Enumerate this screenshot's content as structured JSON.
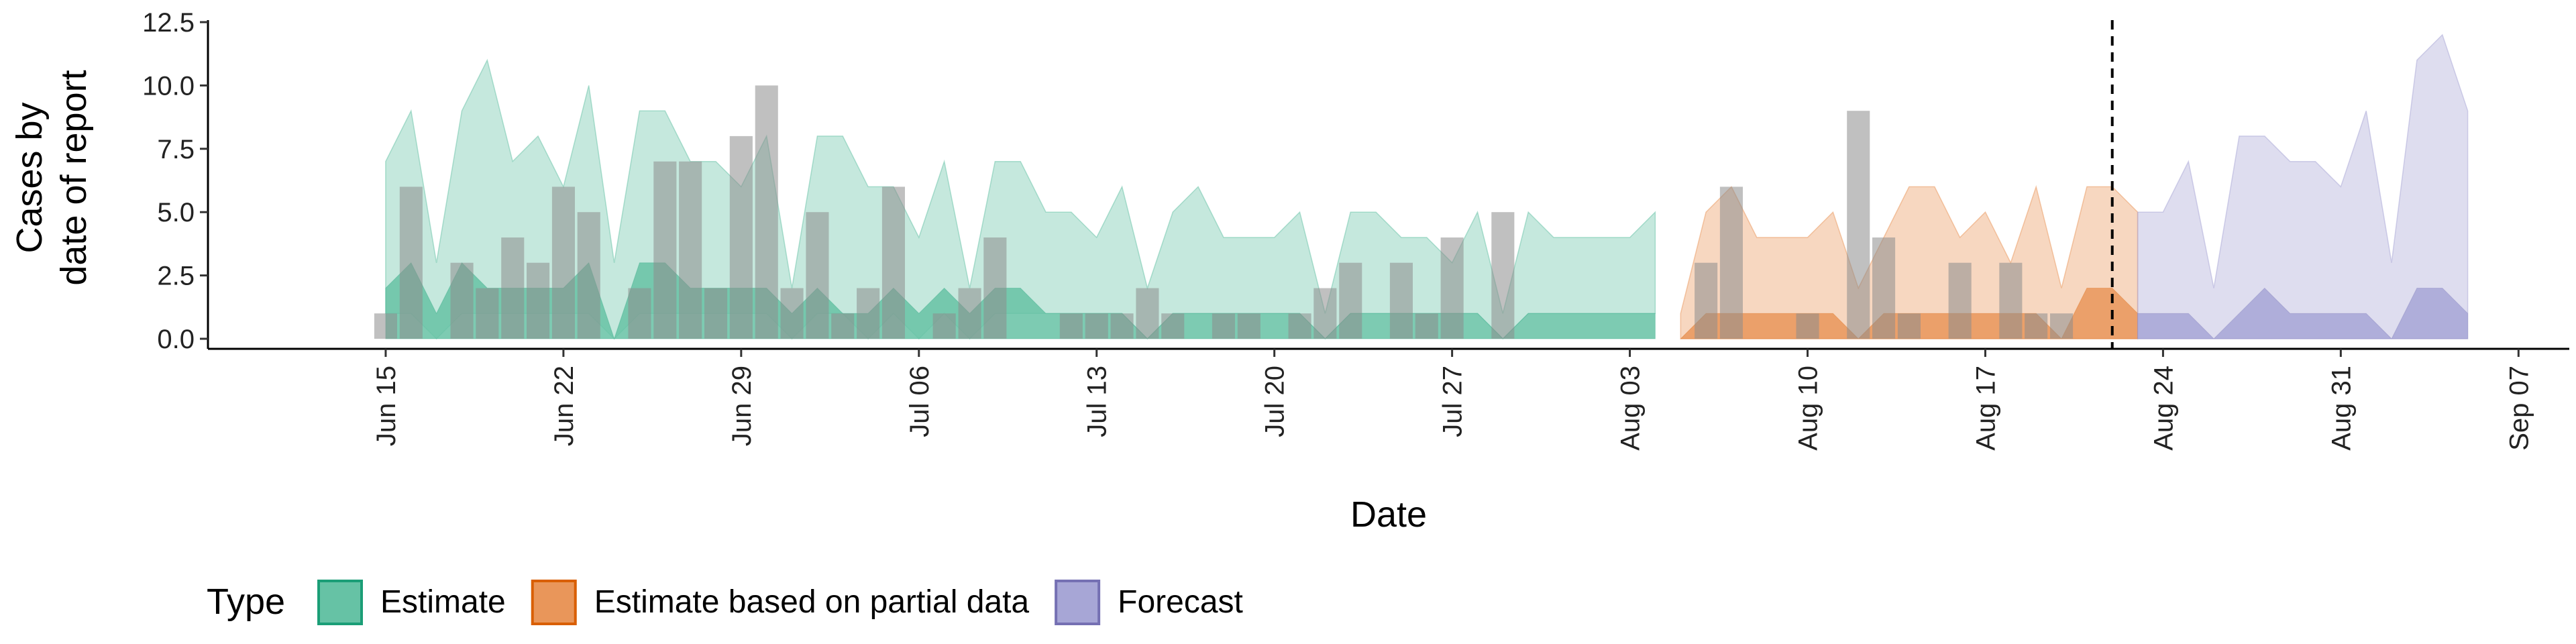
{
  "chart_data": {
    "type": "area",
    "xlabel": "Date",
    "ylabel_lines": [
      "Cases by",
      "date of report"
    ],
    "ylim": [
      0,
      12.5
    ],
    "yticks": [
      "0.0",
      "2.5",
      "5.0",
      "7.5",
      "10.0",
      "12.5"
    ],
    "xlim": [
      "2020-06-08",
      "2020-09-09"
    ],
    "xticks": [
      {
        "date": "2020-06-15",
        "label": "Jun 15"
      },
      {
        "date": "2020-06-22",
        "label": "Jun 22"
      },
      {
        "date": "2020-06-29",
        "label": "Jun 29"
      },
      {
        "date": "2020-07-06",
        "label": "Jul 06"
      },
      {
        "date": "2020-07-13",
        "label": "Jul 13"
      },
      {
        "date": "2020-07-20",
        "label": "Jul 20"
      },
      {
        "date": "2020-07-27",
        "label": "Jul 27"
      },
      {
        "date": "2020-08-03",
        "label": "Aug 03"
      },
      {
        "date": "2020-08-10",
        "label": "Aug 10"
      },
      {
        "date": "2020-08-17",
        "label": "Aug 17"
      },
      {
        "date": "2020-08-24",
        "label": "Aug 24"
      },
      {
        "date": "2020-08-31",
        "label": "Aug 31"
      },
      {
        "date": "2020-09-07",
        "label": "Sep 07"
      }
    ],
    "vline_date": "2020-08-22",
    "legend": {
      "title": "Type",
      "position": "bottom",
      "items": [
        {
          "label": "Estimate",
          "fill": "#66C2A5",
          "stroke": "#1B9E77"
        },
        {
          "label": "Estimate based on partial data",
          "fill": "#E9965A",
          "stroke": "#D95F02"
        },
        {
          "label": "Forecast",
          "fill": "#A7A6D6",
          "stroke": "#7570B3"
        }
      ]
    },
    "colors": {
      "observed_bars": "#8C8C8C",
      "vline": "#000000"
    },
    "observed": {
      "start": "2020-06-15",
      "values": [
        1,
        6,
        0,
        3,
        2,
        4,
        3,
        6,
        5,
        0,
        2,
        7,
        7,
        2,
        8,
        10,
        2,
        5,
        1,
        2,
        6,
        0,
        1,
        2,
        4,
        0,
        0,
        1,
        1,
        1,
        2,
        1,
        0,
        1,
        1,
        0,
        1,
        2,
        3,
        0,
        3,
        1,
        4,
        0,
        5,
        0,
        0,
        0,
        0,
        0,
        0,
        0,
        3,
        6,
        0,
        0,
        1,
        0,
        9,
        4,
        1,
        0,
        3,
        0,
        3,
        1,
        1
      ]
    },
    "series": [
      {
        "name": "Estimate",
        "start": "2020-06-15",
        "upper": [
          7,
          9,
          3,
          9,
          11,
          7,
          8,
          6,
          10,
          3,
          9,
          9,
          7,
          7,
          6,
          8,
          2,
          8,
          8,
          6,
          6,
          4,
          7,
          2,
          7,
          7,
          5,
          5,
          4,
          6,
          2,
          5,
          6,
          4,
          4,
          4,
          5,
          1,
          5,
          5,
          4,
          4,
          3,
          5,
          1,
          5,
          4,
          4,
          4,
          4,
          5
        ],
        "lower": [
          1,
          1,
          0,
          1,
          1,
          1,
          1,
          1,
          1,
          0,
          1,
          1,
          1,
          1,
          1,
          1,
          0,
          1,
          1,
          0,
          1,
          0,
          1,
          0,
          1,
          1,
          1,
          1,
          1,
          1,
          0,
          1,
          1,
          1,
          1,
          1,
          1,
          0,
          1,
          1,
          1,
          1,
          1,
          1,
          0,
          1,
          1,
          1,
          1,
          1,
          1
        ],
        "upper50": [
          2,
          3,
          1,
          3,
          2,
          2,
          2,
          2,
          3,
          0,
          3,
          3,
          2,
          2,
          2,
          2,
          1,
          2,
          1,
          1,
          2,
          1,
          2,
          1,
          2,
          2,
          1,
          1,
          1,
          1,
          0,
          1,
          1,
          1,
          1,
          1,
          1,
          0,
          1,
          1,
          1,
          1,
          1,
          1,
          0,
          1,
          1,
          1,
          1,
          1,
          1
        ],
        "lower50": [
          0,
          0,
          0,
          0,
          0,
          0,
          0,
          0,
          0,
          0,
          0,
          0,
          0,
          0,
          0,
          0,
          0,
          0,
          0,
          0,
          0,
          0,
          0,
          0,
          0,
          0,
          0,
          0,
          0,
          0,
          0,
          0,
          0,
          0,
          0,
          0,
          0,
          0,
          0,
          0,
          0,
          0,
          0,
          0,
          0,
          0,
          0,
          0,
          0,
          0,
          0
        ]
      },
      {
        "name": "Estimate based on partial data",
        "start": "2020-08-05",
        "upper": [
          1,
          5,
          6,
          4,
          4,
          4,
          5,
          2,
          4,
          6,
          6,
          4,
          5,
          3,
          6,
          2,
          6,
          6,
          5
        ],
        "lower": [
          0,
          0,
          0,
          0,
          0,
          0,
          0,
          0,
          0,
          0,
          0,
          0,
          0,
          0,
          0,
          0,
          0,
          0,
          0
        ],
        "upper50": [
          0,
          1,
          1,
          1,
          1,
          1,
          1,
          0,
          1,
          1,
          1,
          1,
          1,
          1,
          1,
          0,
          2,
          2,
          1
        ],
        "lower50": [
          0,
          0,
          0,
          0,
          0,
          0,
          0,
          0,
          0,
          0,
          0,
          0,
          0,
          0,
          0,
          0,
          0,
          0,
          0
        ]
      },
      {
        "name": "Forecast",
        "start": "2020-08-23",
        "upper": [
          5,
          5,
          7,
          2,
          8,
          8,
          7,
          7,
          6,
          9,
          3,
          11,
          12,
          9
        ],
        "lower": [
          0,
          0,
          0,
          0,
          0,
          0,
          0,
          0,
          0,
          0,
          0,
          0,
          0,
          0
        ],
        "upper50": [
          1,
          1,
          1,
          0,
          1,
          2,
          1,
          1,
          1,
          1,
          0,
          2,
          2,
          1
        ],
        "lower50": [
          0,
          0,
          0,
          0,
          0,
          0,
          0,
          0,
          0,
          0,
          0,
          0,
          0,
          0
        ]
      }
    ]
  }
}
